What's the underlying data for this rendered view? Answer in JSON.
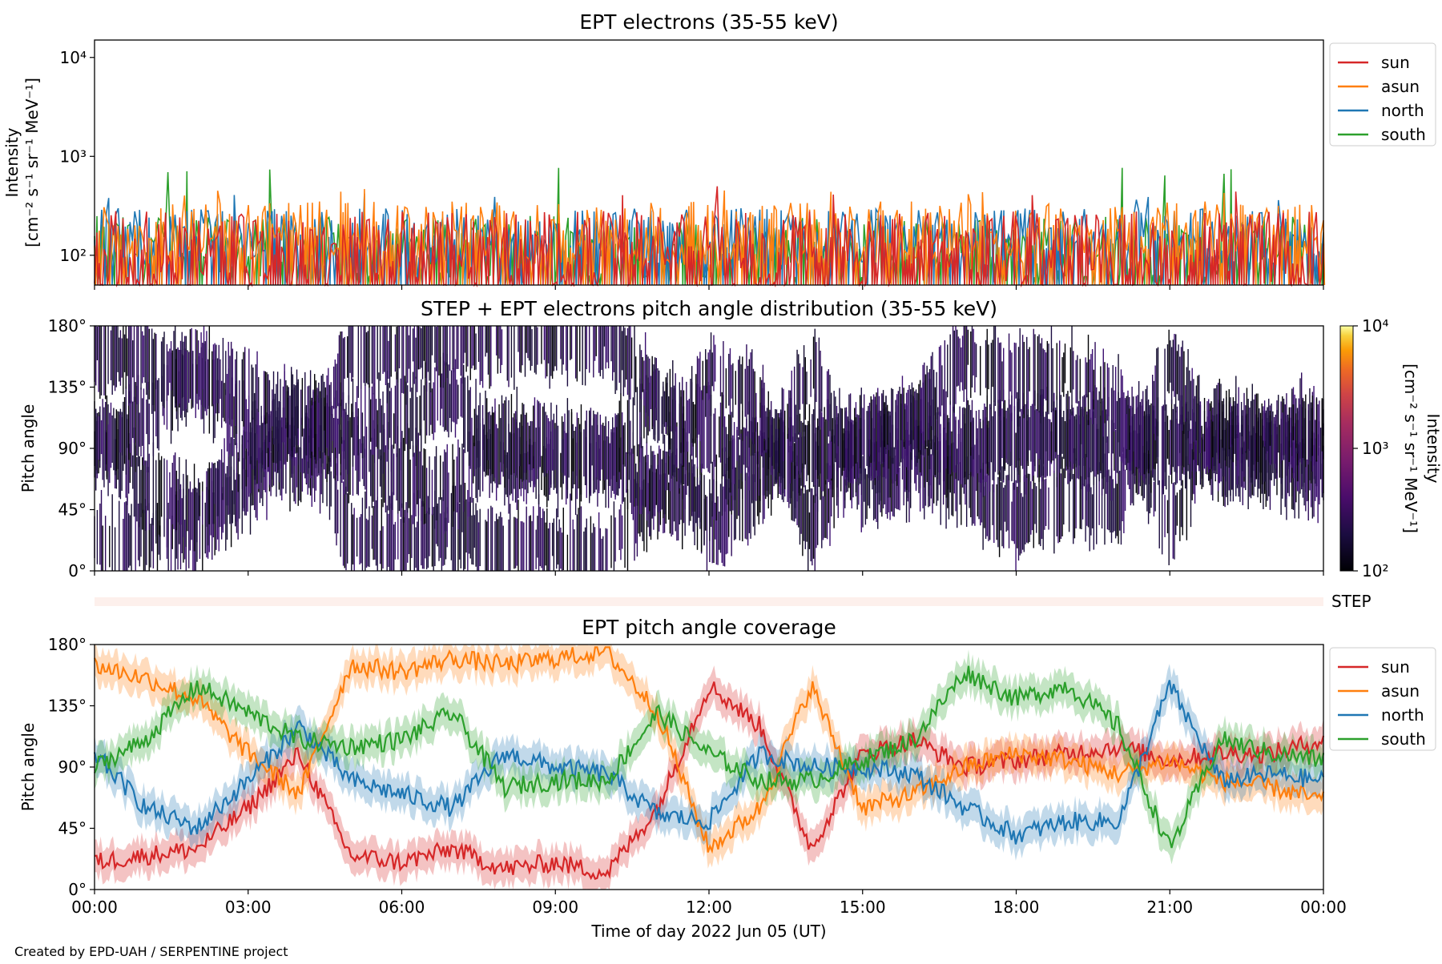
{
  "chart_data": [
    {
      "type": "line",
      "title": "EPT electrons (35-55 keV)",
      "ylabel": "Intensity\n[cm⁻² s⁻¹ sr⁻¹ MeV⁻¹]",
      "ylabel_line1": "Intensity",
      "ylabel_line2": "[cm⁻² s⁻¹ sr⁻¹ MeV⁻¹]",
      "yscale": "log",
      "ylim": [
        50,
        15000
      ],
      "ytick_labels": [
        "10²",
        "10³",
        "10⁴"
      ],
      "ytick_values": [
        100,
        1000,
        10000
      ],
      "xlim": [
        0,
        24
      ],
      "legend_position": "outside-right",
      "grid": false,
      "series": [
        {
          "name": "sun",
          "color": "#d62728",
          "typical_range": [
            50,
            280
          ],
          "peak": 500
        },
        {
          "name": "asun",
          "color": "#ff7f0e",
          "typical_range": [
            80,
            350
          ],
          "peak": 480
        },
        {
          "name": "north",
          "color": "#1f77b4",
          "typical_range": [
            80,
            300
          ],
          "peak": 430
        },
        {
          "name": "south",
          "color": "#2ca02c",
          "typical_range": [
            60,
            250
          ],
          "peak": 770
        }
      ]
    },
    {
      "type": "heatmap",
      "title": "STEP + EPT electrons pitch angle distribution (35-55 keV)",
      "ylabel": "Pitch angle",
      "ylim": [
        0,
        180
      ],
      "ytick_labels": [
        "0°",
        "45°",
        "90°",
        "135°",
        "180°"
      ],
      "ytick_values": [
        0,
        45,
        90,
        135,
        180
      ],
      "xlim": [
        0,
        24
      ],
      "colorbar": {
        "scale": "log",
        "range": [
          100,
          10000
        ],
        "tick_labels": [
          "10²",
          "10³",
          "10⁴"
        ],
        "label_line1": "Intensity",
        "label_line2": "[cm⁻² s⁻¹ sr⁻¹ MeV⁻¹]",
        "colormap": "inferno"
      }
    },
    {
      "type": "heatmap",
      "title": "",
      "label": "STEP",
      "xlim": [
        0,
        24
      ]
    },
    {
      "type": "line",
      "title": "EPT pitch angle coverage",
      "ylabel": "Pitch angle",
      "xlabel": "Time of day 2022 Jun 05 (UT)",
      "ylim": [
        0,
        180
      ],
      "ytick_labels": [
        "0°",
        "45°",
        "90°",
        "135°",
        "180°"
      ],
      "ytick_values": [
        0,
        45,
        90,
        135,
        180
      ],
      "xlim": [
        0,
        24
      ],
      "xtick_labels": [
        "00:00",
        "03:00",
        "06:00",
        "09:00",
        "12:00",
        "15:00",
        "18:00",
        "21:00",
        "00:00"
      ],
      "xtick_values": [
        0,
        3,
        6,
        9,
        12,
        15,
        18,
        21,
        24
      ],
      "legend_position": "outside-right",
      "x_hours": [
        0,
        1,
        2,
        3,
        4,
        5,
        6,
        7,
        8,
        9,
        10,
        11,
        12,
        13,
        14,
        15,
        16,
        17,
        18,
        19,
        20,
        21,
        22,
        23,
        24
      ],
      "series": [
        {
          "name": "sun",
          "color": "#d62728",
          "values": [
            20,
            25,
            30,
            60,
            100,
            25,
            20,
            30,
            15,
            20,
            12,
            60,
            150,
            120,
            30,
            100,
            110,
            90,
            95,
            100,
            105,
            95,
            100,
            100,
            110
          ]
        },
        {
          "name": "asun",
          "color": "#ff7f0e",
          "values": [
            165,
            155,
            140,
            100,
            70,
            165,
            160,
            170,
            165,
            170,
            175,
            130,
            30,
            60,
            150,
            60,
            70,
            90,
            100,
            95,
            85,
            95,
            80,
            75,
            65
          ]
        },
        {
          "name": "north",
          "color": "#1f77b4",
          "values": [
            100,
            60,
            45,
            80,
            120,
            80,
            70,
            60,
            100,
            90,
            85,
            55,
            50,
            100,
            90,
            90,
            85,
            60,
            40,
            50,
            50,
            150,
            80,
            85,
            80
          ]
        },
        {
          "name": "south",
          "color": "#2ca02c",
          "values": [
            90,
            110,
            150,
            130,
            110,
            105,
            110,
            130,
            75,
            80,
            80,
            130,
            100,
            80,
            80,
            95,
            110,
            160,
            140,
            150,
            120,
            30,
            110,
            100,
            95
          ]
        }
      ]
    }
  ],
  "footer": "Created by EPD-UAH / SERPENTINE project"
}
